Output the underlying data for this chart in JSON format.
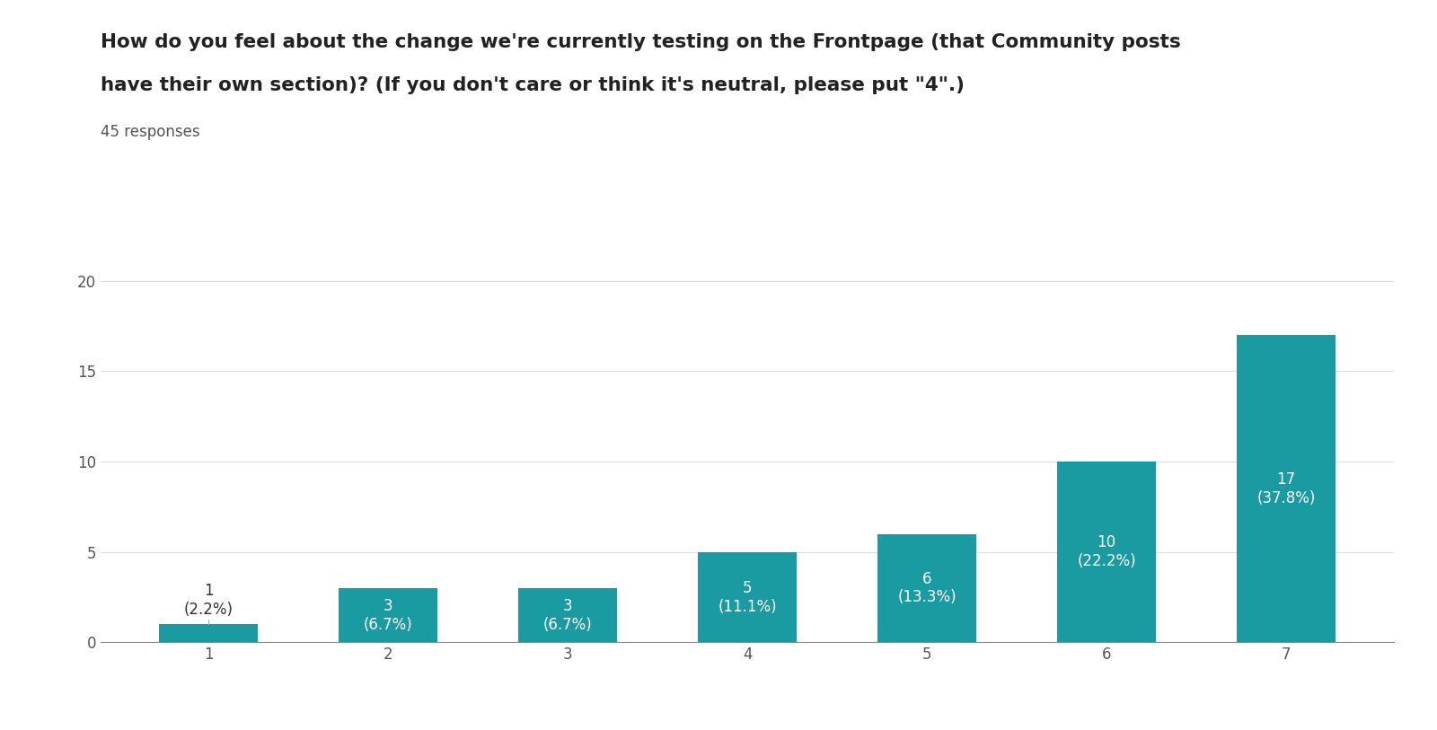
{
  "title_line1": "How do you feel about the change we're currently testing on the Frontpage (that Community posts",
  "title_line2": "have their own section)? (If you don't care or think it's neutral, please put \"4\".)",
  "subtitle": "45 responses",
  "categories": [
    1,
    2,
    3,
    4,
    5,
    6,
    7
  ],
  "values": [
    1,
    3,
    3,
    5,
    6,
    10,
    17
  ],
  "percentages": [
    "2.2%",
    "6.7%",
    "6.7%",
    "11.1%",
    "13.3%",
    "22.2%",
    "37.8%"
  ],
  "bar_color": "#1a9ba1",
  "label_color_outside": "#333333",
  "label_color_inside": "#ffffff",
  "ylim": [
    0,
    21
  ],
  "yticks": [
    0,
    5,
    10,
    15,
    20
  ],
  "background_color": "#ffffff",
  "title_fontsize": 15.5,
  "subtitle_fontsize": 12,
  "tick_fontsize": 12,
  "label_fontsize": 12,
  "grid_color": "#dddddd"
}
